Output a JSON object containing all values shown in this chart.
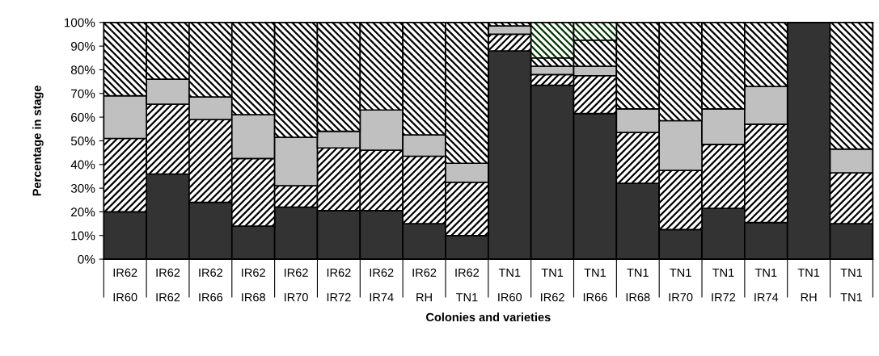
{
  "chart_data": {
    "type": "bar",
    "stacked": true,
    "xlabel": "Colonies and varieties",
    "ylabel": "Percentage in stage",
    "categories": [
      "IR62\nIR60",
      "IR62\nIR62",
      "IR62\nIR66",
      "IR62\nIR68",
      "IR62\nIR70",
      "IR62\nIR72",
      "IR62\nIR74",
      "IR62\nRH",
      "IR62\nTN1",
      "TN1\nIR60",
      "TN1\nIR62",
      "TN1\nIR66",
      "TN1\nIR68",
      "TN1\nIR70",
      "TN1\nIR72",
      "TN1\nIR74",
      "TN1\nRH",
      "TN1\nTN1"
    ],
    "series": [
      {
        "color": "#333333",
        "values": [
          20,
          36,
          24,
          14,
          22,
          20.5,
          20.5,
          15,
          10,
          88,
          73.5,
          61.5,
          32,
          12.5,
          21.5,
          15.5,
          100,
          15
        ]
      },
      {
        "color": "#000000",
        "values": [
          31,
          29.5,
          35,
          28.5,
          9,
          26.5,
          25.5,
          28.5,
          22.5,
          7,
          4.5,
          16,
          21.5,
          25,
          27,
          41.5,
          0,
          21.5
        ]
      },
      {
        "color": "#c0c0c0",
        "values": [
          18,
          10.5,
          9.5,
          18.5,
          20.5,
          7,
          17,
          9,
          8,
          3.5,
          3.5,
          4,
          10,
          21,
          15,
          16,
          0,
          10
        ]
      },
      {
        "color": "#000000",
        "values": [
          31,
          24,
          31.5,
          39,
          48.5,
          46,
          37,
          47.5,
          59.5,
          1.5,
          3.5,
          11,
          36.5,
          41.5,
          36.5,
          27,
          0,
          53.5
        ]
      },
      {
        "color": "#003300",
        "values": [
          null,
          null,
          null,
          null,
          null,
          null,
          null,
          null,
          null,
          null,
          15,
          7.5,
          null,
          null,
          null,
          null,
          null,
          null
        ]
      }
    ],
    "ylim": [
      0,
      100
    ],
    "yticks": [
      {
        "value": 0,
        "label": "0%"
      },
      {
        "value": 10,
        "label": "10%"
      },
      {
        "value": 20,
        "label": "20%"
      },
      {
        "value": 30,
        "label": "30%"
      },
      {
        "value": 40,
        "label": "40%"
      },
      {
        "value": 50,
        "label": "50%"
      },
      {
        "value": 60,
        "label": "60%"
      },
      {
        "value": 70,
        "label": "70%"
      },
      {
        "value": 80,
        "label": "80%"
      },
      {
        "value": 90,
        "label": "90%"
      },
      {
        "value": 100,
        "label": "100%"
      }
    ]
  }
}
